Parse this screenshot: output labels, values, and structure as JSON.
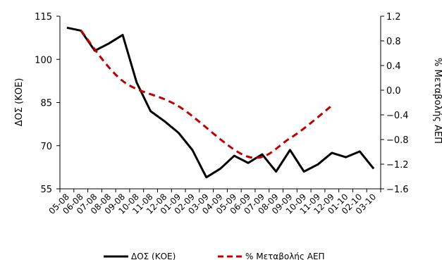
{
  "chart_data": {
    "type": "line",
    "categories": [
      "05-08",
      "06-08",
      "07-08",
      "08-08",
      "09-08",
      "10-08",
      "11-08",
      "12-08",
      "01-09",
      "02-09",
      "03-09",
      "04-09",
      "05-09",
      "06-09",
      "07-09",
      "08-09",
      "09-09",
      "10-09",
      "11-09",
      "12-09",
      "01-10",
      "02-10",
      "03-10"
    ],
    "left_axis": {
      "label": "ΔΟΣ (ΚΟΕ)",
      "range": [
        55,
        115
      ],
      "ticks": [
        "55",
        "70",
        "85",
        "100",
        "115"
      ]
    },
    "right_axis": {
      "label": "% Μεταβολής ΑΕΠ",
      "range": [
        -1.6,
        1.2
      ],
      "ticks": [
        "−1.6",
        "−1.2",
        "−0.8",
        "−0.4",
        "0.0",
        "0.4",
        "0.8",
        "1.2"
      ]
    },
    "series": [
      {
        "name": "ΔΟΣ (ΚΟΕ)",
        "axis": "left",
        "color": "#000000",
        "style": "solid",
        "values": [
          111,
          110,
          103,
          105.5,
          108.5,
          92,
          82,
          78.5,
          74.5,
          68.5,
          59,
          62,
          66.5,
          64,
          67,
          61,
          68.5,
          61,
          63.5,
          67.5,
          66,
          68,
          62
        ]
      },
      {
        "name": "% Μεταβολής ΑΕΠ",
        "axis": "right",
        "color": "#c00000",
        "style": "dashed",
        "values": [
          null,
          0.97,
          null,
          null,
          0.15,
          null,
          null,
          null,
          -0.26,
          null,
          null,
          null,
          null,
          -1.08,
          null,
          null,
          -0.78,
          null,
          null,
          -0.25,
          null,
          null,
          null
        ]
      }
    ],
    "legend_position": "bottom"
  }
}
